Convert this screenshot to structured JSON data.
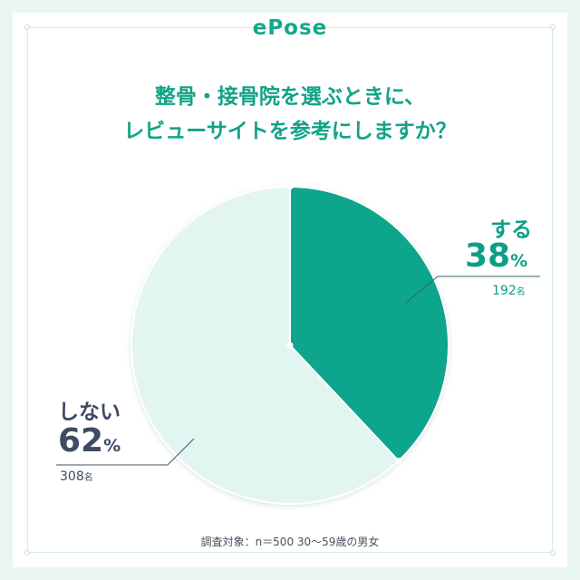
{
  "brand": "ePose",
  "title": {
    "line1": "整骨・接骨院を選ぶときに、",
    "line2": "レビューサイトを参考にしますか？"
  },
  "colors": {
    "yes": "#07a58c",
    "no": "#e3f5f1",
    "text_dark": "#3f4a63"
  },
  "chart_data": {
    "type": "pie",
    "slices": [
      {
        "label": "する",
        "percent": 38,
        "percent_label": "38",
        "count_label": "192"
      },
      {
        "label": "しない",
        "percent": 62,
        "percent_label": "62",
        "count_label": "308"
      }
    ],
    "unit_percent": "%",
    "unit_count": "名"
  },
  "footnote": "調査対象：n＝500 30～59歳の男女"
}
